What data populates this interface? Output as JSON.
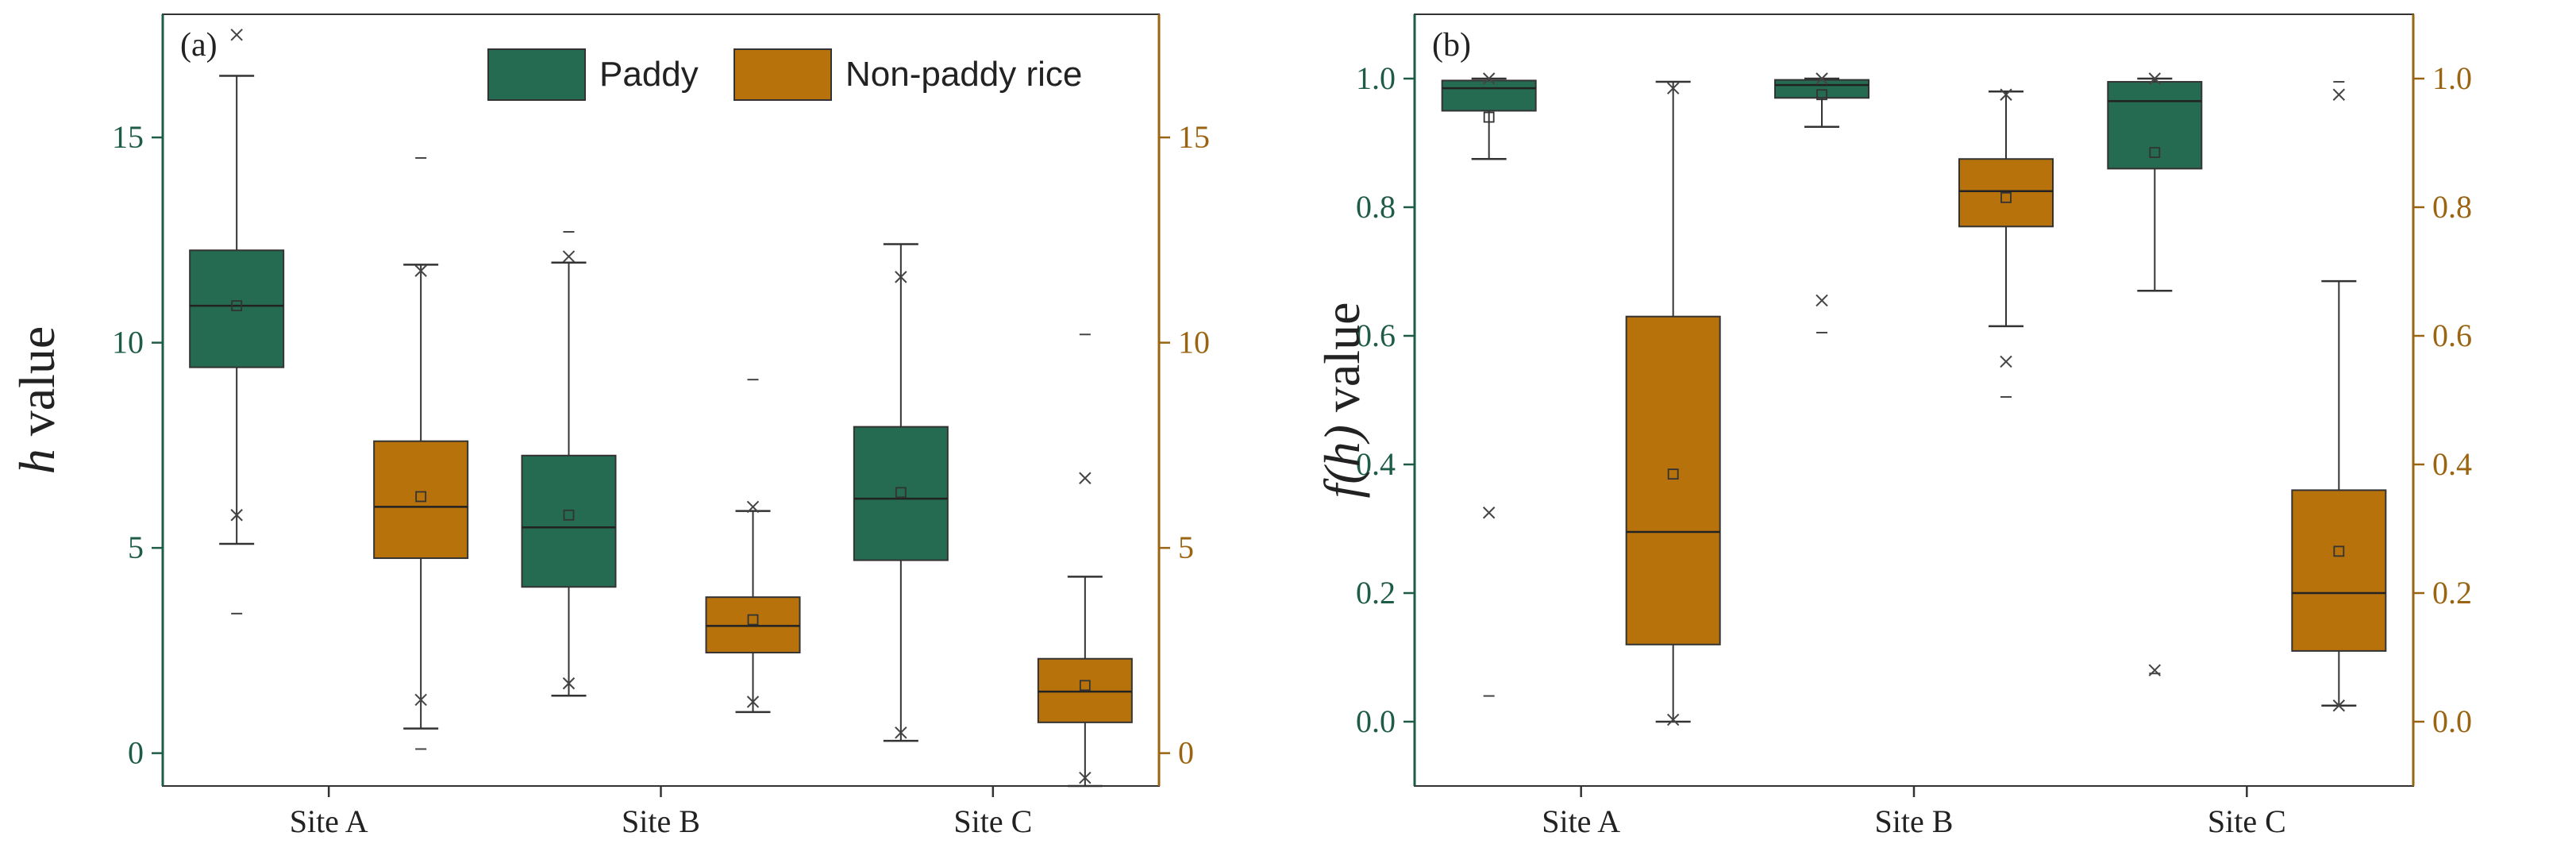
{
  "colors": {
    "paddy": "#256b51",
    "nonpaddy": "#b8720c",
    "left_axis": "#1f5c46",
    "right_axis": "#9a6412",
    "frame": "#333333"
  },
  "chart_data": [
    {
      "type": "box",
      "panel_label": "(a)",
      "ylabel_italic": "h",
      "ylabel_rest": " value",
      "ylim": [
        -0.8,
        18.0
      ],
      "yticks_left": [
        "0",
        "5",
        "10",
        "15"
      ],
      "yticks_right": [
        "0",
        "5",
        "10",
        "15"
      ],
      "ytick_values": [
        0,
        5,
        10,
        15
      ],
      "categories": [
        "Site A",
        "Site B",
        "Site C"
      ],
      "legend": {
        "paddy": "Paddy",
        "nonpaddy": "Non-paddy rice"
      },
      "series": [
        {
          "name": "Paddy",
          "boxes": [
            {
              "q1": 9.4,
              "median": 10.9,
              "q3": 12.25,
              "whisker_low": 5.1,
              "whisker_high": 16.5,
              "mean": 10.9,
              "p1": 5.8,
              "p99": 17.5,
              "min": 3.4
            },
            {
              "q1": 4.05,
              "median": 5.5,
              "q3": 7.25,
              "whisker_low": 1.4,
              "whisker_high": 11.95,
              "mean": 5.8,
              "p1": 1.7,
              "p99": 12.1,
              "max": 12.7
            },
            {
              "q1": 4.7,
              "median": 6.2,
              "q3": 7.95,
              "whisker_low": 0.3,
              "whisker_high": 12.4,
              "mean": 6.35,
              "p1": 0.5,
              "p99": 11.6
            }
          ]
        },
        {
          "name": "Non-paddy rice",
          "boxes": [
            {
              "q1": 4.75,
              "median": 6.0,
              "q3": 7.6,
              "whisker_low": 0.6,
              "whisker_high": 11.9,
              "mean": 6.25,
              "p1": 1.3,
              "p99": 11.75,
              "min": 0.1,
              "max": 14.5
            },
            {
              "q1": 2.45,
              "median": 3.1,
              "q3": 3.8,
              "whisker_low": 1.0,
              "whisker_high": 5.9,
              "mean": 3.25,
              "p1": 1.25,
              "p99": 6.0,
              "max": 9.1
            },
            {
              "q1": 0.75,
              "median": 1.5,
              "q3": 2.3,
              "whisker_low": -0.8,
              "whisker_high": 4.3,
              "mean": 1.65,
              "p1": -0.6,
              "p99": 6.7,
              "max": 10.2
            }
          ]
        }
      ]
    },
    {
      "type": "box",
      "panel_label": "(b)",
      "ylabel_italic": "f(h)",
      "ylabel_rest": " value",
      "ylim": [
        -0.1,
        1.1
      ],
      "yticks_left": [
        "0.0",
        "0.2",
        "0.4",
        "0.6",
        "0.8",
        "1.0"
      ],
      "yticks_right": [
        "0.0",
        "0.2",
        "0.4",
        "0.6",
        "0.8",
        "1.0"
      ],
      "ytick_values": [
        0,
        0.2,
        0.4,
        0.6,
        0.8,
        1.0
      ],
      "categories": [
        "Site A",
        "Site B",
        "Site C"
      ],
      "series": [
        {
          "name": "Paddy",
          "boxes": [
            {
              "q1": 0.95,
              "median": 0.985,
              "q3": 0.997,
              "whisker_low": 0.875,
              "whisker_high": 1.0,
              "mean": 0.94,
              "p1": 0.325,
              "p99": 1.0,
              "min": 0.04
            },
            {
              "q1": 0.97,
              "median": 0.99,
              "q3": 0.998,
              "whisker_low": 0.925,
              "whisker_high": 1.0,
              "mean": 0.975,
              "p1": 0.655,
              "p99": 1.0,
              "min": 0.605
            },
            {
              "q1": 0.86,
              "median": 0.965,
              "q3": 0.995,
              "whisker_low": 0.67,
              "whisker_high": 1.0,
              "mean": 0.885,
              "p1": 0.08,
              "p99": 1.0,
              "min": 0.075
            }
          ]
        },
        {
          "name": "Non-paddy rice",
          "boxes": [
            {
              "q1": 0.12,
              "median": 0.295,
              "q3": 0.63,
              "whisker_low": 0.0,
              "whisker_high": 0.995,
              "mean": 0.385,
              "p1": 0.003,
              "p99": 0.985
            },
            {
              "q1": 0.77,
              "median": 0.825,
              "q3": 0.875,
              "whisker_low": 0.615,
              "whisker_high": 0.98,
              "mean": 0.815,
              "p1": 0.56,
              "p99": 0.975,
              "min": 0.505
            },
            {
              "q1": 0.11,
              "median": 0.2,
              "q3": 0.36,
              "whisker_low": 0.025,
              "whisker_high": 0.685,
              "mean": 0.265,
              "p1": 0.025,
              "p99": 0.975,
              "max": 0.995
            }
          ]
        }
      ]
    }
  ]
}
